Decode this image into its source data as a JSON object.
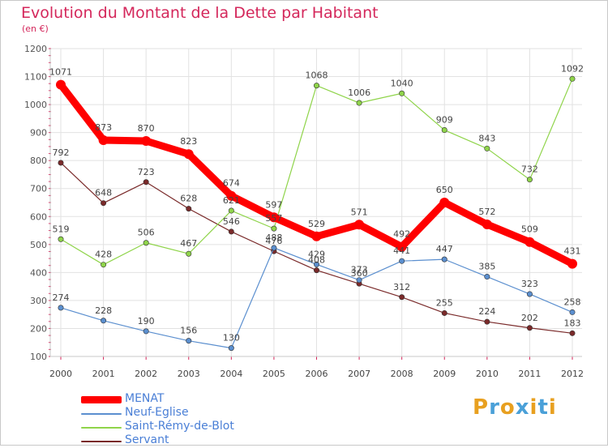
{
  "title": "Evolution du Montant de la Dette par Habitant",
  "unit_label": "(en €)",
  "logo": {
    "text": "Proxiti",
    "colors": [
      "#e8a020",
      "#4aa0d8",
      "#e8a020",
      "#4aa0d8",
      "#e8a020",
      "#4aa0d8",
      "#e8a020"
    ]
  },
  "chart_data": {
    "type": "line",
    "x": [
      "2000",
      "2001",
      "2002",
      "2003",
      "2004",
      "2005",
      "2006",
      "2007",
      "2008",
      "2009",
      "2010",
      "2011",
      "2012"
    ],
    "ylim": [
      100,
      1200
    ],
    "yticks": [
      "100",
      "200",
      "300",
      "400",
      "500",
      "600",
      "700",
      "800",
      "900",
      "1000",
      "1100",
      "1200"
    ],
    "grid": true,
    "series": [
      {
        "name": "MENAT",
        "color": "#ff0000",
        "values": [
          1071,
          873,
          870,
          823,
          674,
          597,
          529,
          571,
          492,
          650,
          572,
          509,
          431
        ],
        "labels": [
          "1071",
          "873",
          "870",
          "823",
          "674",
          "597",
          "529",
          "571",
          "492",
          "650",
          "572",
          "509",
          "431"
        ]
      },
      {
        "name": "Neuf-Eglise",
        "color": "#5b8fcf",
        "values": [
          274,
          228,
          190,
          156,
          130,
          488,
          429,
          373,
          441,
          447,
          385,
          323,
          258
        ],
        "labels": [
          "274",
          "228",
          "190",
          "156",
          "130",
          "488",
          "429",
          "373",
          "441",
          "447",
          "385",
          "323",
          "258"
        ]
      },
      {
        "name": "Saint-Rémy-de-Blot",
        "color": "#8fd44a",
        "values": [
          519,
          428,
          506,
          467,
          621,
          557,
          1068,
          1006,
          1040,
          909,
          843,
          732,
          1092
        ],
        "labels": [
          "519",
          "428",
          "506",
          "467",
          "621",
          "557",
          "1068",
          "1006",
          "1040",
          "909",
          "843",
          "732",
          "1092"
        ]
      },
      {
        "name": "Servant",
        "color": "#7a2a2a",
        "values": [
          792,
          648,
          723,
          628,
          546,
          476,
          408,
          360,
          312,
          255,
          224,
          202,
          183
        ],
        "labels": [
          "792",
          "648",
          "723",
          "628",
          "546",
          "476",
          "408",
          "360",
          "312",
          "255",
          "224",
          "202",
          "183"
        ]
      }
    ]
  }
}
